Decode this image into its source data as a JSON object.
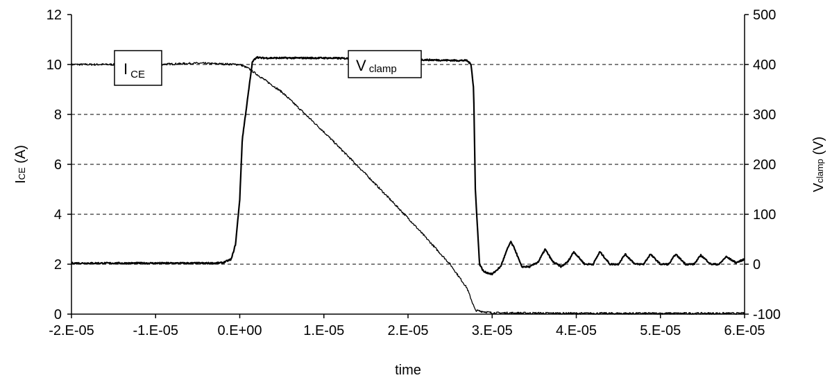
{
  "chart_data": {
    "type": "line",
    "xlabel": "time",
    "xlim": [
      -2e-05,
      6e-05
    ],
    "x_ticks": [
      -2e-05,
      -1e-05,
      0,
      1e-05,
      2e-05,
      3e-05,
      4e-05,
      5e-05,
      6e-05
    ],
    "x_tick_labels": [
      "-2.E-05",
      "-1.E-05",
      "0.E+00",
      "1.E-05",
      "2.E-05",
      "3.E-05",
      "4.E-05",
      "5.E-05",
      "6.E-05"
    ],
    "y_left": {
      "label_main": "I",
      "label_sub": "CE",
      "label_unit": " (A)",
      "lim": [
        0,
        12
      ],
      "ticks": [
        0,
        2,
        4,
        6,
        8,
        10,
        12
      ],
      "tick_labels": [
        "0",
        "2",
        "4",
        "6",
        "8",
        "10",
        "12"
      ]
    },
    "y_right": {
      "label_main": "V",
      "label_sub": "clamp",
      "label_unit": " (V)",
      "lim": [
        -100,
        500
      ],
      "ticks": [
        -100,
        0,
        100,
        200,
        300,
        400,
        500
      ],
      "tick_labels": [
        "-100",
        "0",
        "100",
        "200",
        "300",
        "400",
        "500"
      ]
    },
    "grid": "horizontal dashed",
    "series": [
      {
        "name_main": "I",
        "name_sub": "CE",
        "axis": "left",
        "x": [
          -2e-05,
          -1e-05,
          -5e-06,
          0,
          1e-06,
          5e-06,
          1e-05,
          1.5e-05,
          2e-05,
          2.5e-05,
          2.7e-05,
          2.8e-05,
          3e-05,
          4e-05,
          5e-05,
          6e-05
        ],
        "y": [
          10.0,
          10.0,
          10.05,
          10.0,
          9.85,
          8.9,
          7.3,
          5.6,
          3.85,
          2.0,
          1.05,
          0.15,
          0.05,
          0.03,
          0.03,
          0.03
        ]
      },
      {
        "name_main": "V",
        "name_sub": "clamp",
        "axis": "right",
        "x": [
          -2e-05,
          -1e-05,
          -3e-06,
          -2e-06,
          -1e-06,
          -5e-07,
          0,
          3e-07,
          1e-06,
          1.5e-06,
          2e-06,
          2.5e-06,
          1e-05,
          2e-05,
          2.6e-05,
          2.7e-05,
          2.75e-05,
          2.78e-05,
          2.8e-05,
          2.85e-05,
          2.9e-05,
          3e-05,
          3.1e-05,
          3.18e-05,
          3.22e-05,
          3.27e-05,
          3.35e-05,
          3.45e-05,
          3.55e-05,
          3.63e-05,
          3.72e-05,
          3.82e-05,
          3.9e-05,
          3.97e-05,
          4.1e-05,
          4.2e-05,
          4.28e-05,
          4.4e-05,
          4.5e-05,
          4.58e-05,
          4.7e-05,
          4.8e-05,
          4.88e-05,
          5e-05,
          5.1e-05,
          5.18e-05,
          5.3e-05,
          5.4e-05,
          5.48e-05,
          5.6e-05,
          5.7e-05,
          5.78e-05,
          5.9e-05,
          6e-05
        ],
        "y": [
          2,
          2,
          2,
          3,
          10,
          40,
          130,
          250,
          340,
          405,
          415,
          413,
          413,
          410,
          408,
          408,
          400,
          350,
          150,
          0,
          -15,
          -20,
          -5,
          30,
          45,
          30,
          -5,
          -5,
          5,
          30,
          5,
          -5,
          5,
          25,
          0,
          0,
          25,
          0,
          0,
          20,
          0,
          0,
          20,
          0,
          0,
          20,
          0,
          0,
          18,
          0,
          0,
          15,
          3,
          10
        ]
      }
    ]
  }
}
